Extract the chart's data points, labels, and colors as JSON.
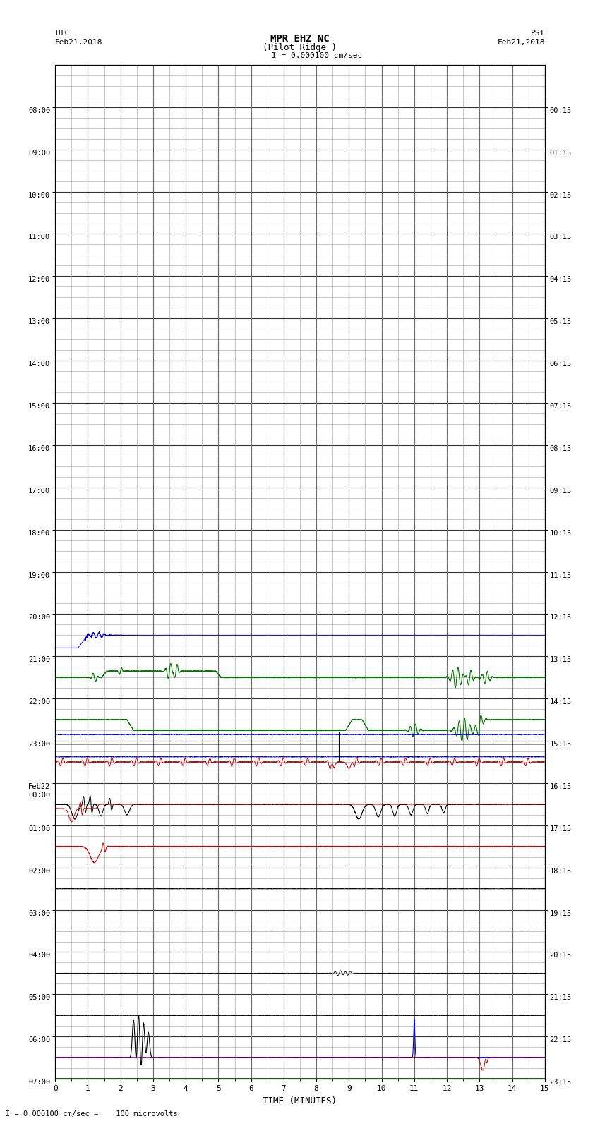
{
  "title_line1": "MPR EHZ NC",
  "title_line2": "(Pilot Ridge )",
  "scale_text": "I = 0.000100 cm/sec",
  "left_label_top": "UTC",
  "left_label_date": "Feb21,2018",
  "right_label_top": "PST",
  "right_label_date": "Feb21,2018",
  "xlabel": "TIME (MINUTES)",
  "bottom_note": "I = 0.000100 cm/sec =    100 microvolts",
  "left_yticks": [
    "08:00",
    "09:00",
    "10:00",
    "11:00",
    "12:00",
    "13:00",
    "14:00",
    "15:00",
    "16:00",
    "17:00",
    "18:00",
    "19:00",
    "20:00",
    "21:00",
    "22:00",
    "23:00",
    "Feb22\n00:00",
    "01:00",
    "02:00",
    "03:00",
    "04:00",
    "05:00",
    "06:00",
    "07:00"
  ],
  "right_yticks": [
    "00:15",
    "01:15",
    "02:15",
    "03:15",
    "04:15",
    "05:15",
    "06:15",
    "07:15",
    "08:15",
    "09:15",
    "10:15",
    "11:15",
    "12:15",
    "13:15",
    "14:15",
    "15:15",
    "16:15",
    "17:15",
    "18:15",
    "19:15",
    "20:15",
    "21:15",
    "22:15",
    "23:15"
  ],
  "n_rows": 24,
  "x_min": 0,
  "x_max": 15,
  "xticks": [
    0,
    1,
    2,
    3,
    4,
    5,
    6,
    7,
    8,
    9,
    10,
    11,
    12,
    13,
    14,
    15
  ],
  "bg_color": "#ffffff",
  "grid_major_color": "#333333",
  "grid_minor_color": "#999999",
  "trace_color_blue": "#0000dd",
  "trace_color_green": "#007700",
  "trace_color_red": "#cc0000",
  "trace_color_black": "#000000",
  "figwidth": 8.5,
  "figheight": 16.13,
  "n_subrows": 4
}
